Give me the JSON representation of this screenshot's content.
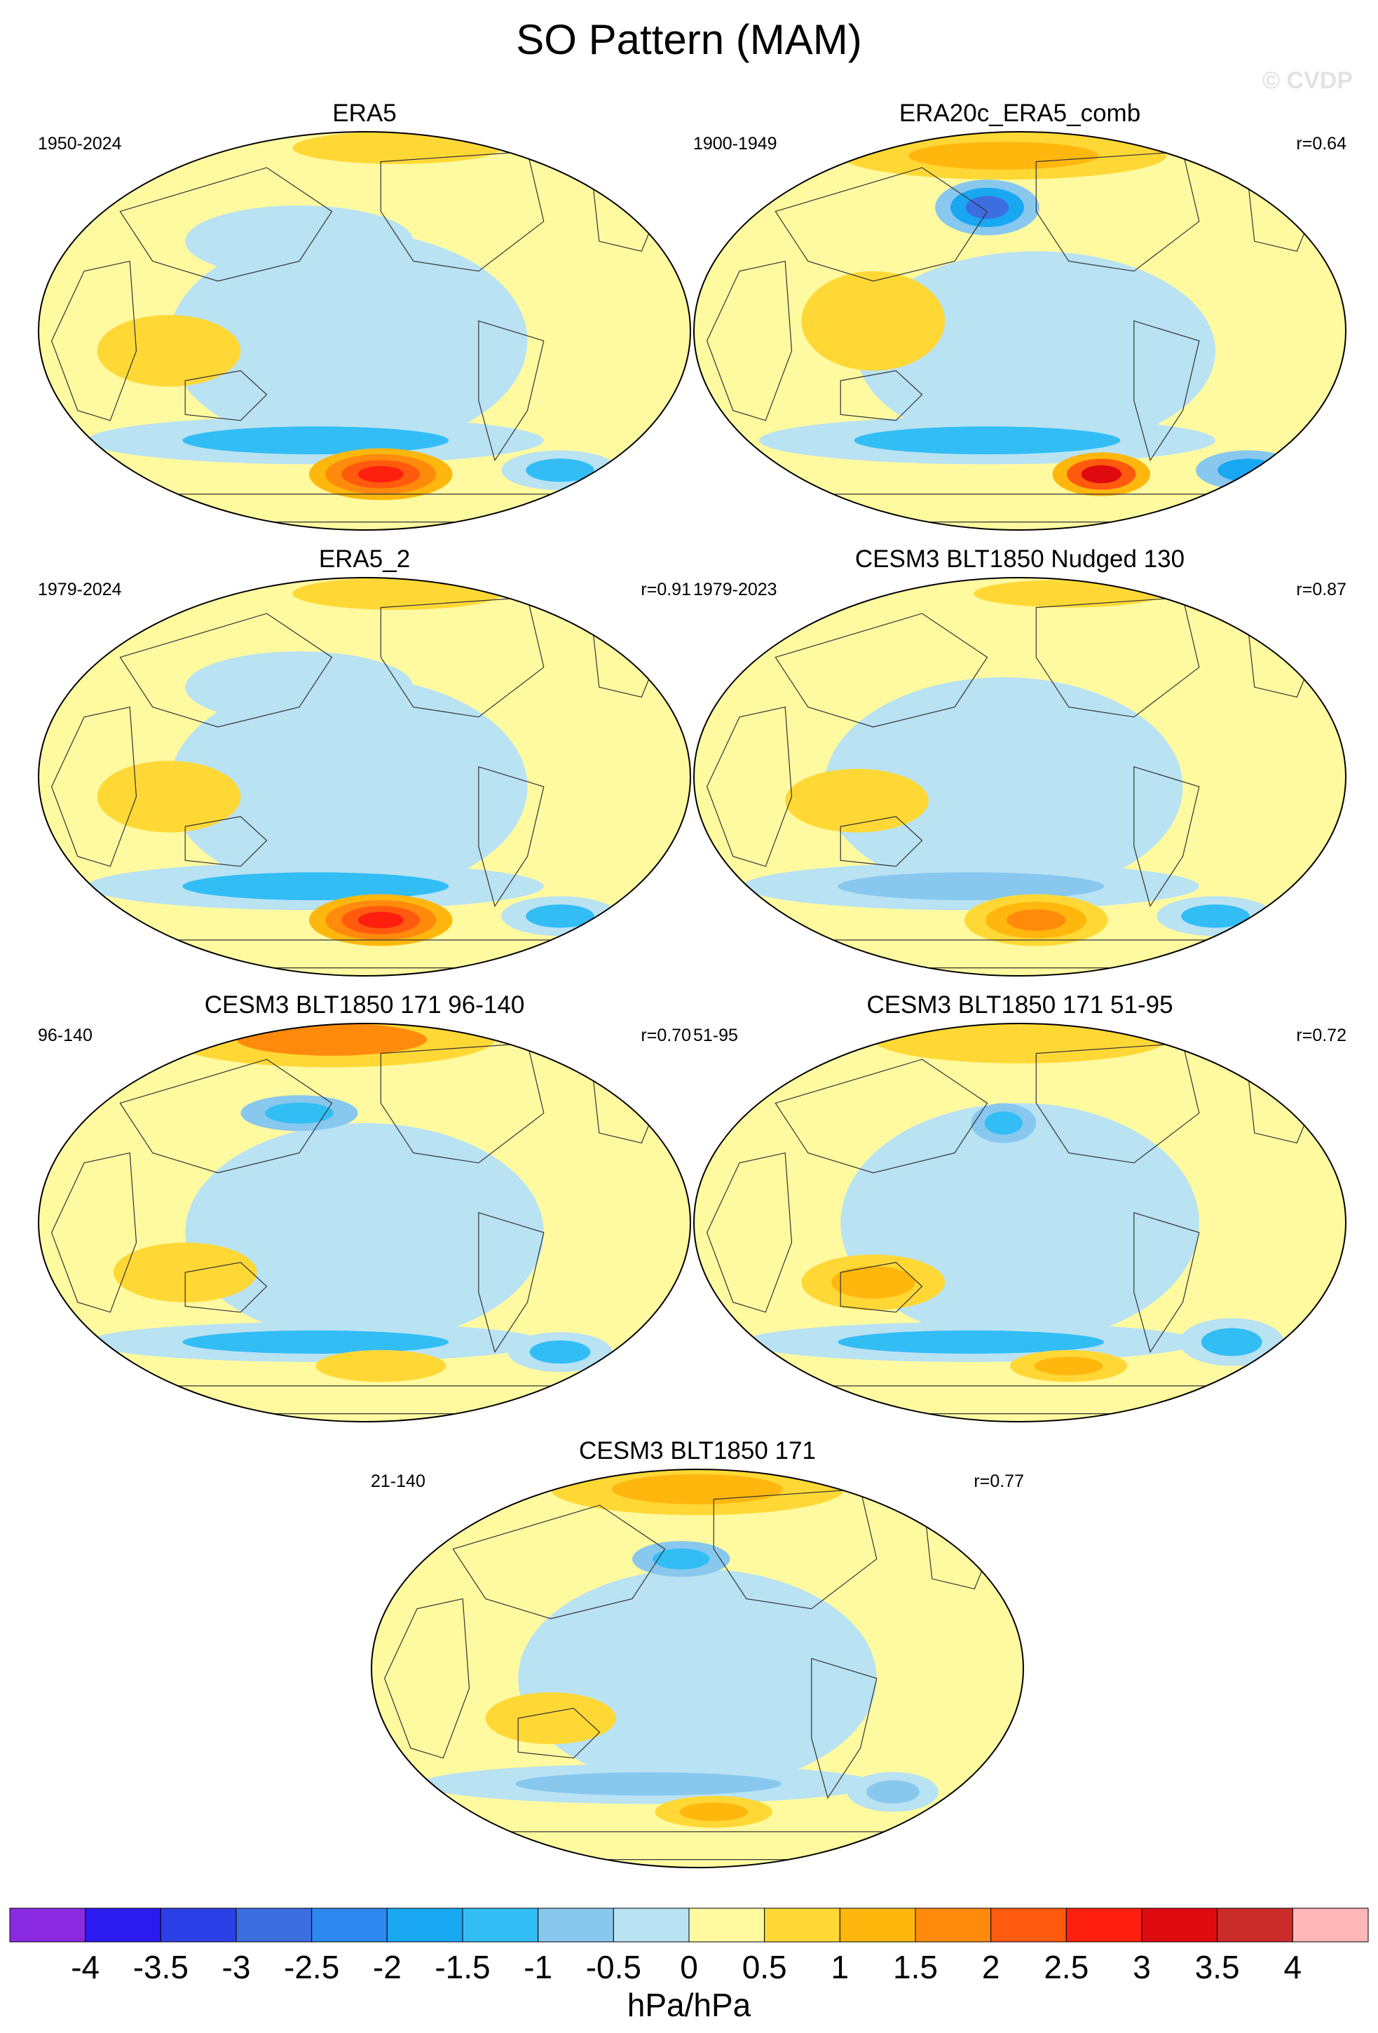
{
  "figure": {
    "title": "SO Pattern (MAM)",
    "watermark": "© CVDP",
    "units_label": "hPa/hPa"
  },
  "panels": [
    {
      "title": "ERA5",
      "period": "1950-2024",
      "corr": "",
      "pattern": "era5"
    },
    {
      "title": "ERA20c_ERA5_comb",
      "period": "1900-1949",
      "corr": "r=0.64",
      "pattern": "era20c"
    },
    {
      "title": "ERA5_2",
      "period": "1979-2024",
      "corr": "r=0.91",
      "pattern": "era5"
    },
    {
      "title": "CESM3 BLT1850 Nudged 130",
      "period": "1979-2023",
      "corr": "r=0.87",
      "pattern": "nudged"
    },
    {
      "title": "CESM3 BLT1850 171 96-140",
      "period": "96-140",
      "corr": "r=0.70",
      "pattern": "m96"
    },
    {
      "title": "CESM3 BLT1850 171 51-95",
      "period": "51-95",
      "corr": "r=0.72",
      "pattern": "m51"
    },
    {
      "title": "CESM3 BLT1850 171",
      "period": "21-140",
      "corr": "r=0.77",
      "pattern": "m21"
    }
  ],
  "colorbar": {
    "tick_labels": [
      "-4",
      "-3.5",
      "-3",
      "-2.5",
      "-2",
      "-1.5",
      "-1",
      "-0.5",
      "0",
      "0.5",
      "1",
      "1.5",
      "2",
      "2.5",
      "3",
      "3.5",
      "4"
    ],
    "colors": [
      "#8a2be2",
      "#2b1bf0",
      "#2c3fe6",
      "#3c6ee0",
      "#2f88f0",
      "#1aa7f2",
      "#33bdf5",
      "#88c8ee",
      "#b9e2f3",
      "#fffaa0",
      "#ffd836",
      "#ffb70e",
      "#ff8a0c",
      "#ff5a0e",
      "#ff1f0e",
      "#de0a10",
      "#cc2b2b",
      "#ffb6b6"
    ]
  },
  "map_styles": {
    "ocean_color": "#b9e2f3",
    "land_color": "#fffaa0",
    "coast_color": "#333333"
  }
}
